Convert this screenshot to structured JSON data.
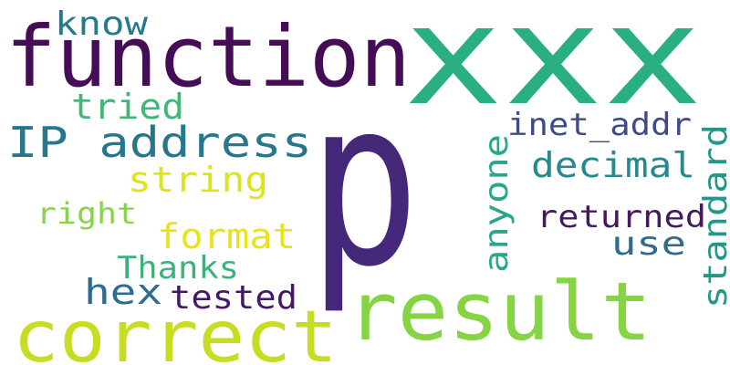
{
  "words": [
    {
      "text": "p",
      "color": "#46287a"
    },
    {
      "text": "xxx",
      "color": "#2aaf80"
    },
    {
      "text": "function",
      "color": "#440d55"
    },
    {
      "text": "result",
      "color": "#86d444"
    },
    {
      "text": "correct",
      "color": "#c8dc21"
    },
    {
      "text": "IP address",
      "color": "#27768c"
    },
    {
      "text": "know",
      "color": "#277a8c"
    },
    {
      "text": "tried",
      "color": "#3cb975"
    },
    {
      "text": "string",
      "color": "#dde51a"
    },
    {
      "text": "right",
      "color": "#86d449"
    },
    {
      "text": "format",
      "color": "#e7e419"
    },
    {
      "text": "Thanks",
      "color": "#3ab27a"
    },
    {
      "text": "hex",
      "color": "#2f6d8d"
    },
    {
      "text": "tested",
      "color": "#451966"
    },
    {
      "text": "inet_addr",
      "color": "#3d4b88"
    },
    {
      "text": "decimal",
      "color": "#238a8d"
    },
    {
      "text": "returned",
      "color": "#441a5f"
    },
    {
      "text": "use",
      "color": "#326a8e"
    },
    {
      "text": "anyone",
      "color": "#2aa68a"
    },
    {
      "text": "standard",
      "color": "#22978a"
    }
  ]
}
